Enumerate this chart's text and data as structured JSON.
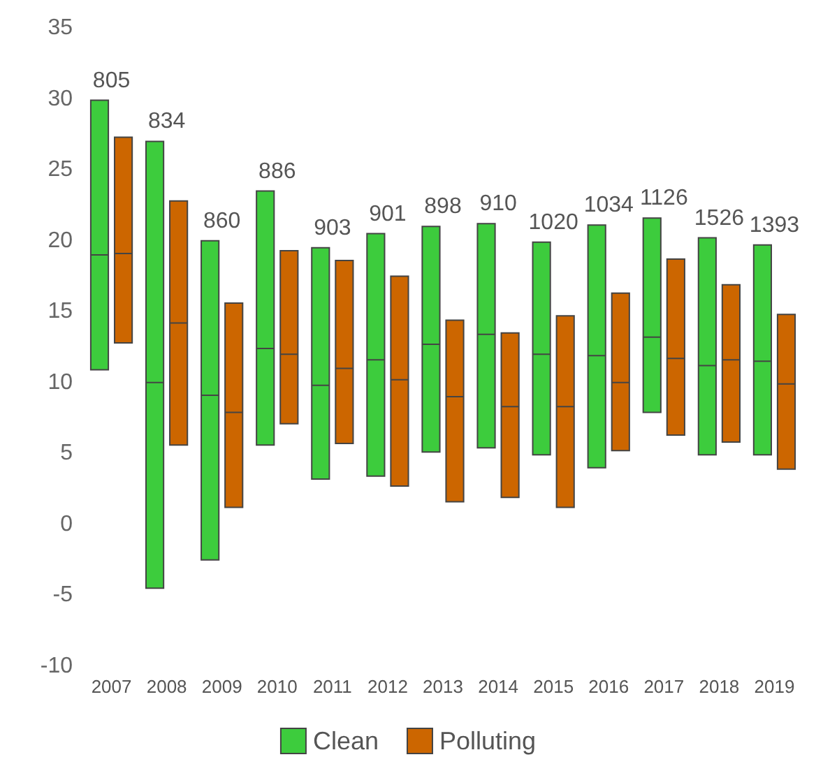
{
  "chart_data": {
    "type": "box",
    "categories": [
      "2007",
      "2008",
      "2009",
      "2010",
      "2011",
      "2012",
      "2013",
      "2014",
      "2015",
      "2016",
      "2017",
      "2018",
      "2019"
    ],
    "series": [
      {
        "name": "Clean",
        "color": "#3dcc3d",
        "boxes": [
          {
            "low": 10.9,
            "q1": 10.9,
            "median": 19.0,
            "q3": 29.9,
            "high": 29.9
          },
          {
            "low": -4.5,
            "q1": -4.5,
            "median": 10.0,
            "q3": 27.0,
            "high": 27.0
          },
          {
            "low": -2.5,
            "q1": -2.5,
            "median": 9.1,
            "q3": 20.0,
            "high": 20.0
          },
          {
            "low": 5.6,
            "q1": 5.6,
            "median": 12.4,
            "q3": 23.5,
            "high": 23.5
          },
          {
            "low": 3.2,
            "q1": 3.2,
            "median": 9.8,
            "q3": 19.5,
            "high": 19.5
          },
          {
            "low": 3.4,
            "q1": 3.4,
            "median": 11.6,
            "q3": 20.5,
            "high": 20.5
          },
          {
            "low": 5.1,
            "q1": 5.1,
            "median": 12.7,
            "q3": 21.0,
            "high": 21.0
          },
          {
            "low": 5.4,
            "q1": 5.4,
            "median": 13.4,
            "q3": 21.2,
            "high": 21.2
          },
          {
            "low": 4.9,
            "q1": 4.9,
            "median": 12.0,
            "q3": 19.9,
            "high": 19.9
          },
          {
            "low": 4.0,
            "q1": 4.0,
            "median": 11.9,
            "q3": 21.1,
            "high": 21.1
          },
          {
            "low": 7.9,
            "q1": 7.9,
            "median": 13.2,
            "q3": 21.6,
            "high": 21.6
          },
          {
            "low": 4.9,
            "q1": 4.9,
            "median": 11.2,
            "q3": 20.2,
            "high": 20.2
          },
          {
            "low": 4.9,
            "q1": 4.9,
            "median": 11.5,
            "q3": 19.7,
            "high": 19.7
          }
        ]
      },
      {
        "name": "Polluting",
        "color": "#cc6600",
        "boxes": [
          {
            "low": 12.8,
            "q1": 12.8,
            "median": 19.1,
            "q3": 27.3,
            "high": 27.3
          },
          {
            "low": 5.6,
            "q1": 5.6,
            "median": 14.2,
            "q3": 22.8,
            "high": 22.8
          },
          {
            "low": 1.2,
            "q1": 1.2,
            "median": 7.9,
            "q3": 15.6,
            "high": 15.6
          },
          {
            "low": 7.1,
            "q1": 7.1,
            "median": 12.0,
            "q3": 19.3,
            "high": 19.3
          },
          {
            "low": 5.7,
            "q1": 5.7,
            "median": 11.0,
            "q3": 18.6,
            "high": 18.6
          },
          {
            "low": 2.7,
            "q1": 2.7,
            "median": 10.2,
            "q3": 17.5,
            "high": 17.5
          },
          {
            "low": 1.6,
            "q1": 1.6,
            "median": 9.0,
            "q3": 14.4,
            "high": 14.4
          },
          {
            "low": 1.9,
            "q1": 1.9,
            "median": 8.3,
            "q3": 13.5,
            "high": 13.5
          },
          {
            "low": 1.2,
            "q1": 1.2,
            "median": 8.3,
            "q3": 14.7,
            "high": 14.7
          },
          {
            "low": 5.2,
            "q1": 5.2,
            "median": 10.0,
            "q3": 16.3,
            "high": 16.3
          },
          {
            "low": 6.3,
            "q1": 6.3,
            "median": 11.7,
            "q3": 18.7,
            "high": 18.7
          },
          {
            "low": 5.8,
            "q1": 5.8,
            "median": 11.6,
            "q3": 16.9,
            "high": 16.9
          },
          {
            "low": 3.9,
            "q1": 3.9,
            "median": 9.9,
            "q3": 14.8,
            "high": 14.8
          }
        ]
      }
    ],
    "ylim": [
      -10,
      35
    ],
    "yticks": [
      -10,
      -5,
      0,
      5,
      10,
      15,
      20,
      25,
      30,
      35
    ],
    "grid": false,
    "legend": "bottom",
    "annotations": [
      {
        "text": "805",
        "x": "2007",
        "y": 29.9
      },
      {
        "text": "834",
        "x": "2008",
        "y": 27.0
      },
      {
        "text": "860",
        "x": "2009",
        "y": 20.0
      },
      {
        "text": "886",
        "x": "2010",
        "y": 23.5
      },
      {
        "text": "903",
        "x": "2011",
        "y": 19.5
      },
      {
        "text": "901",
        "x": "2012",
        "y": 20.5
      },
      {
        "text": "898",
        "x": "2013",
        "y": 21.0
      },
      {
        "text": "910",
        "x": "2014",
        "y": 21.2
      },
      {
        "text": "1020",
        "x": "2015",
        "y": 19.9
      },
      {
        "text": "1034",
        "x": "2016",
        "y": 21.1
      },
      {
        "text": "1126",
        "x": "2017",
        "y": 21.6
      },
      {
        "text": "1526",
        "x": "2018",
        "y": 20.2
      },
      {
        "text": "1393",
        "x": "2019",
        "y": 19.7
      }
    ]
  }
}
